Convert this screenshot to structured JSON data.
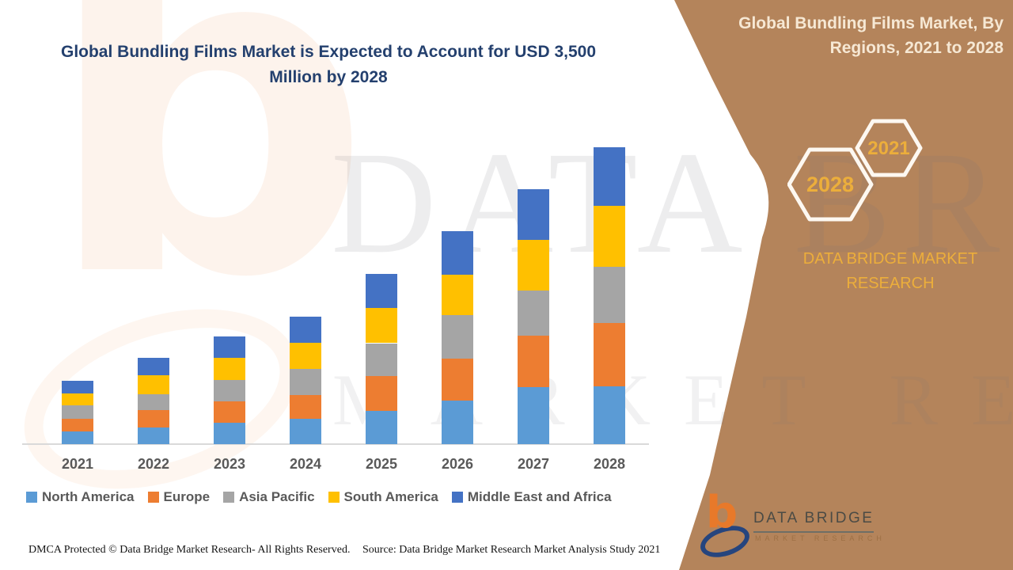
{
  "chart": {
    "title": "Global Bundling Films Market is Expected to Account for USD 3,500 Million by 2028"
  },
  "chart_data": {
    "type": "bar",
    "subtype": "stacked-vertical",
    "title": "Global Bundling Films Market is Expected to Account for USD 3,500 Million by 2028",
    "unit": "USD Million",
    "categories": [
      "2021",
      "2022",
      "2023",
      "2024",
      "2025",
      "2026",
      "2027",
      "2028"
    ],
    "series": [
      {
        "name": "North America",
        "color": "#5B9BD5",
        "values": [
          150,
          195,
          250,
          295,
          390,
          515,
          675,
          685
        ]
      },
      {
        "name": "Europe",
        "color": "#ED7D31",
        "values": [
          150,
          210,
          250,
          285,
          415,
          490,
          605,
          740
        ]
      },
      {
        "name": "Asia Pacific",
        "color": "#A5A5A5",
        "values": [
          160,
          180,
          260,
          310,
          385,
          520,
          535,
          665
        ]
      },
      {
        "name": "South America",
        "color": "#FFC000",
        "values": [
          140,
          230,
          255,
          305,
          415,
          475,
          590,
          715
        ]
      },
      {
        "name": "Middle East and Africa",
        "color": "#4472C4",
        "values": [
          145,
          200,
          250,
          310,
          400,
          515,
          600,
          695
        ]
      }
    ],
    "totals_estimated": [
      745,
      1015,
      1265,
      1505,
      2005,
      2515,
      3005,
      3500
    ],
    "ylim": [
      0,
      3500
    ],
    "y_axis_shown": false,
    "grid": false,
    "legend_position": "bottom"
  },
  "panel": {
    "title": "Global Bundling Films Market, By Regions, 2021 to 2028",
    "badge_large": "2028",
    "badge_small": "2021",
    "brand": "DATA BRIDGE MARKET RESEARCH",
    "accent_color": "#ECAE3B",
    "background_color": "#B4845B",
    "logo": {
      "mark": "b",
      "name": "DATA BRIDGE",
      "tagline": "MARKET RESEARCH"
    }
  },
  "watermark": {
    "line1": "DATA BRIDGE",
    "line2": "MARKET RESEARCH",
    "logo_mark": "b"
  },
  "footer": {
    "dmca": "DMCA Protected © Data Bridge Market Research- All Rights Reserved.",
    "source": "Source: Data Bridge Market Research Market Analysis Study 2021"
  }
}
